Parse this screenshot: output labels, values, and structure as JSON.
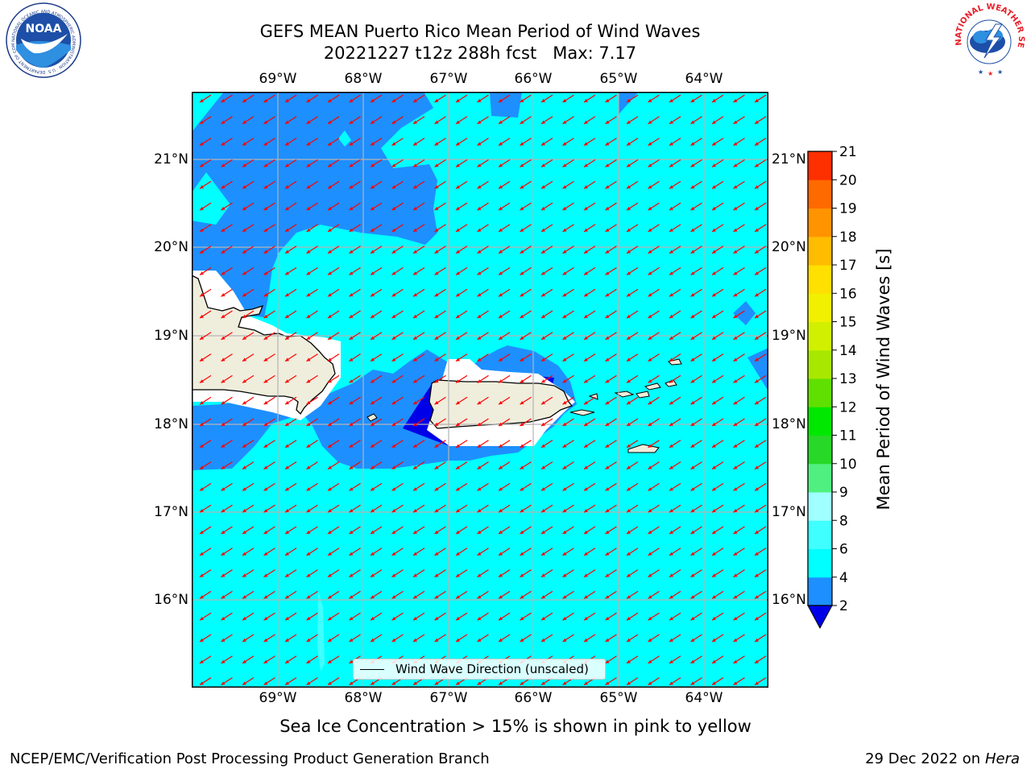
{
  "header": {
    "title_line1": "GEFS MEAN Puerto Rico Mean Period of Wind Waves",
    "title_line2": "20221227 t12z 288h fcst   Max: 7.17"
  },
  "logos": {
    "noaa_text": "NOAA",
    "noaa_ring_text": "NATIONAL OCEANIC AND ATMOSPHERIC ADMINISTRATION · U.S. DEPARTMENT OF COMMERCE",
    "nws_ring_text": "NATIONAL WEATHER SERVICE"
  },
  "map": {
    "longitude_labels": [
      "69°W",
      "68°W",
      "67°W",
      "66°W",
      "65°W",
      "64°W"
    ],
    "latitude_labels": [
      "21°N",
      "20°N",
      "19°N",
      "18°N",
      "17°N",
      "16°N"
    ],
    "colors": {
      "ocean_light": "#00FFFF",
      "ocean_blue": "#1E8FFF",
      "ocean_dark": "#0000E8",
      "land": "#EFEDDC",
      "arrow": "#FF0000",
      "grid": "#B4B4B4"
    }
  },
  "colorbar": {
    "label": "Mean Period of Wind Waves [s]",
    "ticks": [
      "2",
      "4",
      "6",
      "8",
      "9",
      "10",
      "11",
      "12",
      "13",
      "14",
      "15",
      "16",
      "17",
      "18",
      "19",
      "20",
      "21"
    ],
    "colors": [
      "#1E8FFF",
      "#00FFFF",
      "#40FFFF",
      "#A0FFFF",
      "#50F080",
      "#28D828",
      "#00E800",
      "#60E000",
      "#A8E800",
      "#D0F000",
      "#F0F000",
      "#FFE000",
      "#FFBC00",
      "#FF9400",
      "#FF6A00",
      "#FF3000",
      "#FF0000"
    ],
    "extend_color": "#0000E8"
  },
  "legend": {
    "label": "Wind Wave Direction (unscaled)"
  },
  "footer": {
    "sea_ice_note": "Sea Ice Concentration > 15% is shown in pink to yellow",
    "left": "NCEP/EMC/Verification Post Processing Product Generation Branch",
    "right_date": "29 Dec 2022 on",
    "right_host": "Hera"
  }
}
